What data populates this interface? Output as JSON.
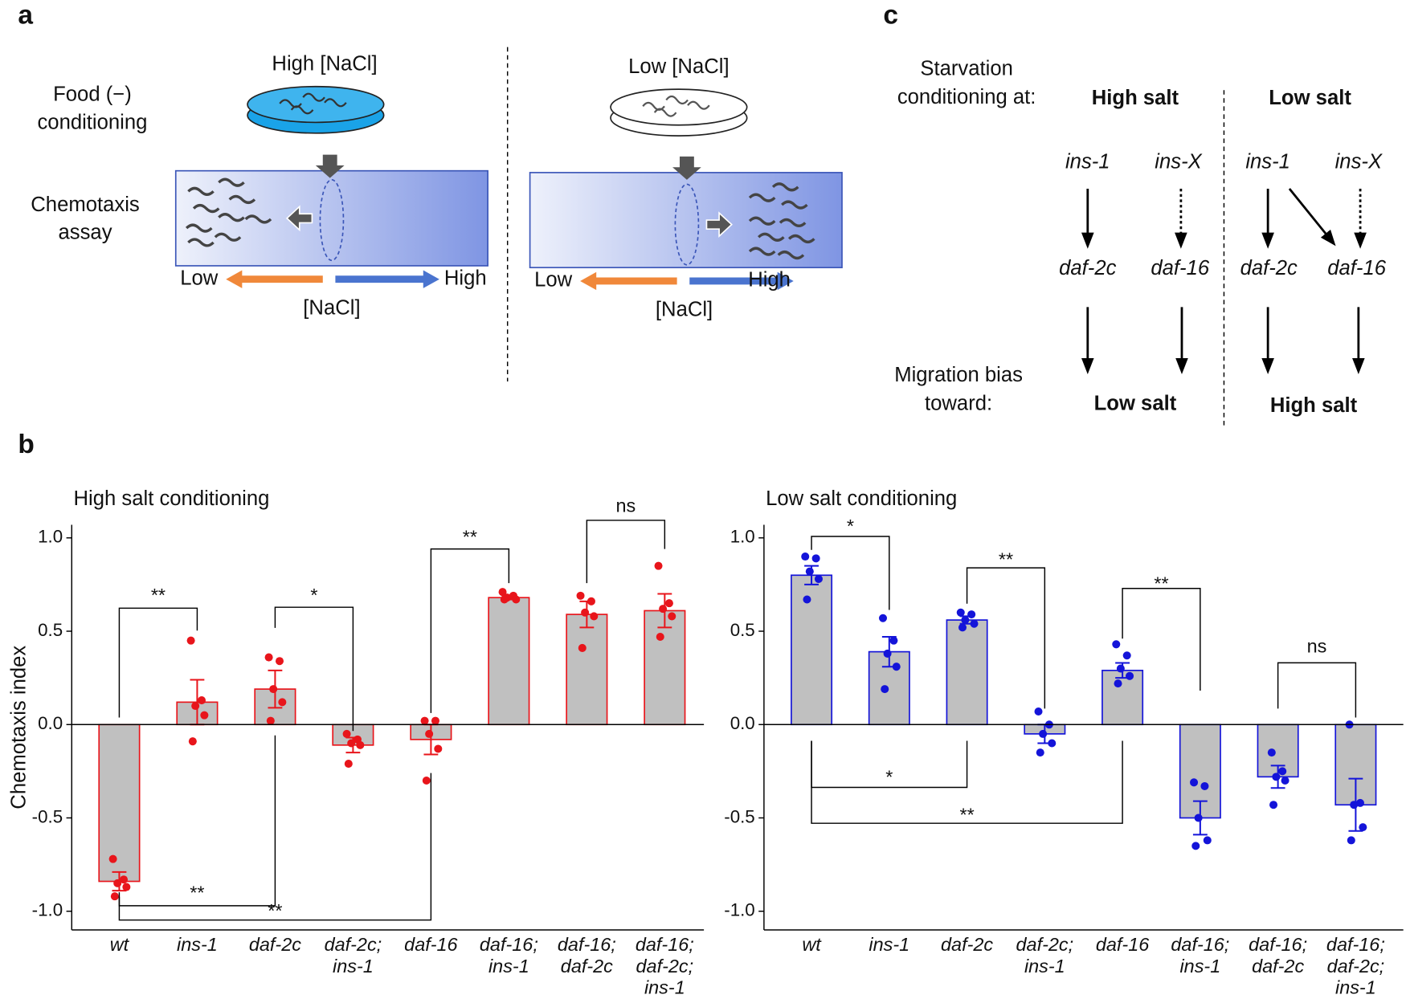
{
  "panel_labels": [
    "a",
    "b",
    "c"
  ],
  "panel_a": {
    "left": {
      "dish": "High [NaCl]",
      "conditioning": [
        "Food (−)",
        "conditioning"
      ],
      "assay": [
        "Chemotaxis",
        "assay"
      ],
      "low": "Low",
      "high": "High",
      "axis": "[NaCl]"
    },
    "right": {
      "dish": "Low [NaCl]",
      "low": "Low",
      "high": "High",
      "axis": "[NaCl]"
    }
  },
  "panel_c": {
    "starvation": [
      "Starvation",
      "conditioning at:"
    ],
    "high_salt": "High salt",
    "low_salt": "Low salt",
    "high_nodes": [
      "ins-1",
      "ins-X",
      "daf-2c",
      "daf-16"
    ],
    "low_nodes": [
      "ins-1",
      "ins-X",
      "daf-2c",
      "daf-16"
    ],
    "migration": [
      "Migration bias",
      "toward:"
    ],
    "high_result": "Low salt",
    "low_result": "High salt"
  },
  "chart_data": [
    {
      "type": "bar",
      "title": "High salt conditioning",
      "ylabel": "Chemotaxis index",
      "color": "#e8151b",
      "categories": [
        [
          "wt"
        ],
        [
          "ins-1"
        ],
        [
          "daf-2c"
        ],
        [
          "daf-2c;",
          "ins-1"
        ],
        [
          "daf-16"
        ],
        [
          "daf-16;",
          "ins-1"
        ],
        [
          "daf-16;",
          "daf-2c"
        ],
        [
          "daf-16;",
          "daf-2c;",
          "ins-1"
        ]
      ],
      "values": [
        -0.84,
        0.12,
        0.19,
        -0.11,
        -0.08,
        0.68,
        0.59,
        0.61
      ],
      "errors": [
        0.05,
        0.12,
        0.1,
        0.04,
        0.08,
        0.01,
        0.07,
        0.09
      ],
      "points": [
        [
          -0.72,
          -0.83,
          -0.85,
          -0.87,
          -0.92
        ],
        [
          0.45,
          0.13,
          0.1,
          0.05,
          -0.09
        ],
        [
          0.36,
          0.34,
          0.19,
          0.12,
          0.02
        ],
        [
          -0.05,
          -0.08,
          -0.1,
          -0.11,
          -0.21
        ],
        [
          0.02,
          0.02,
          -0.05,
          -0.13,
          -0.3
        ],
        [
          0.71,
          0.69,
          0.68,
          0.67,
          0.67
        ],
        [
          0.69,
          0.66,
          0.6,
          0.58,
          0.41
        ],
        [
          0.85,
          0.65,
          0.62,
          0.58,
          0.47
        ]
      ],
      "ylim": [
        -1.1,
        1.07
      ],
      "yticks": [
        {
          "value": 1,
          "label": "1.0"
        },
        {
          "value": 0.5,
          "label": "0.5"
        },
        {
          "value": 0,
          "label": "0.0"
        },
        {
          "value": -0.5,
          "label": "-0.5"
        },
        {
          "value": -1,
          "label": "-1.0"
        }
      ],
      "brackets": [
        "**",
        "*",
        "**",
        "ns",
        "**",
        "**"
      ]
    },
    {
      "type": "bar",
      "title": "Low salt conditioning",
      "color": "#1414d9",
      "categories": [
        [
          "wt"
        ],
        [
          "ins-1"
        ],
        [
          "daf-2c"
        ],
        [
          "daf-2c;",
          "ins-1"
        ],
        [
          "daf-16"
        ],
        [
          "daf-16;",
          "ins-1"
        ],
        [
          "daf-16;",
          "daf-2c"
        ],
        [
          "daf-16;",
          "daf-2c;",
          "ins-1"
        ]
      ],
      "values": [
        0.8,
        0.39,
        0.56,
        -0.05,
        0.29,
        -0.5,
        -0.28,
        -0.43
      ],
      "errors": [
        0.05,
        0.08,
        0.02,
        0.05,
        0.04,
        0.09,
        0.06,
        0.14
      ],
      "points": [
        [
          0.9,
          0.89,
          0.82,
          0.78,
          0.67
        ],
        [
          0.57,
          0.45,
          0.38,
          0.31,
          0.19
        ],
        [
          0.6,
          0.59,
          0.56,
          0.54,
          0.52
        ],
        [
          0.07,
          0.0,
          -0.05,
          -0.1,
          -0.15
        ],
        [
          0.43,
          0.37,
          0.3,
          0.26,
          0.22
        ],
        [
          -0.31,
          -0.33,
          -0.5,
          -0.62,
          -0.65
        ],
        [
          -0.15,
          -0.25,
          -0.28,
          -0.3,
          -0.43
        ],
        [
          0.0,
          -0.42,
          -0.43,
          -0.55,
          -0.62
        ]
      ],
      "ylim": [
        -1.1,
        1.07
      ],
      "yticks": [
        {
          "value": 1,
          "label": "1.0"
        },
        {
          "value": 0.5,
          "label": "0.5"
        },
        {
          "value": 0,
          "label": "0.0"
        },
        {
          "value": -0.5,
          "label": "-0.5"
        },
        {
          "value": -1,
          "label": "-1.0"
        }
      ],
      "brackets": [
        "*",
        "**",
        "**",
        "ns",
        "*",
        "**"
      ]
    }
  ]
}
